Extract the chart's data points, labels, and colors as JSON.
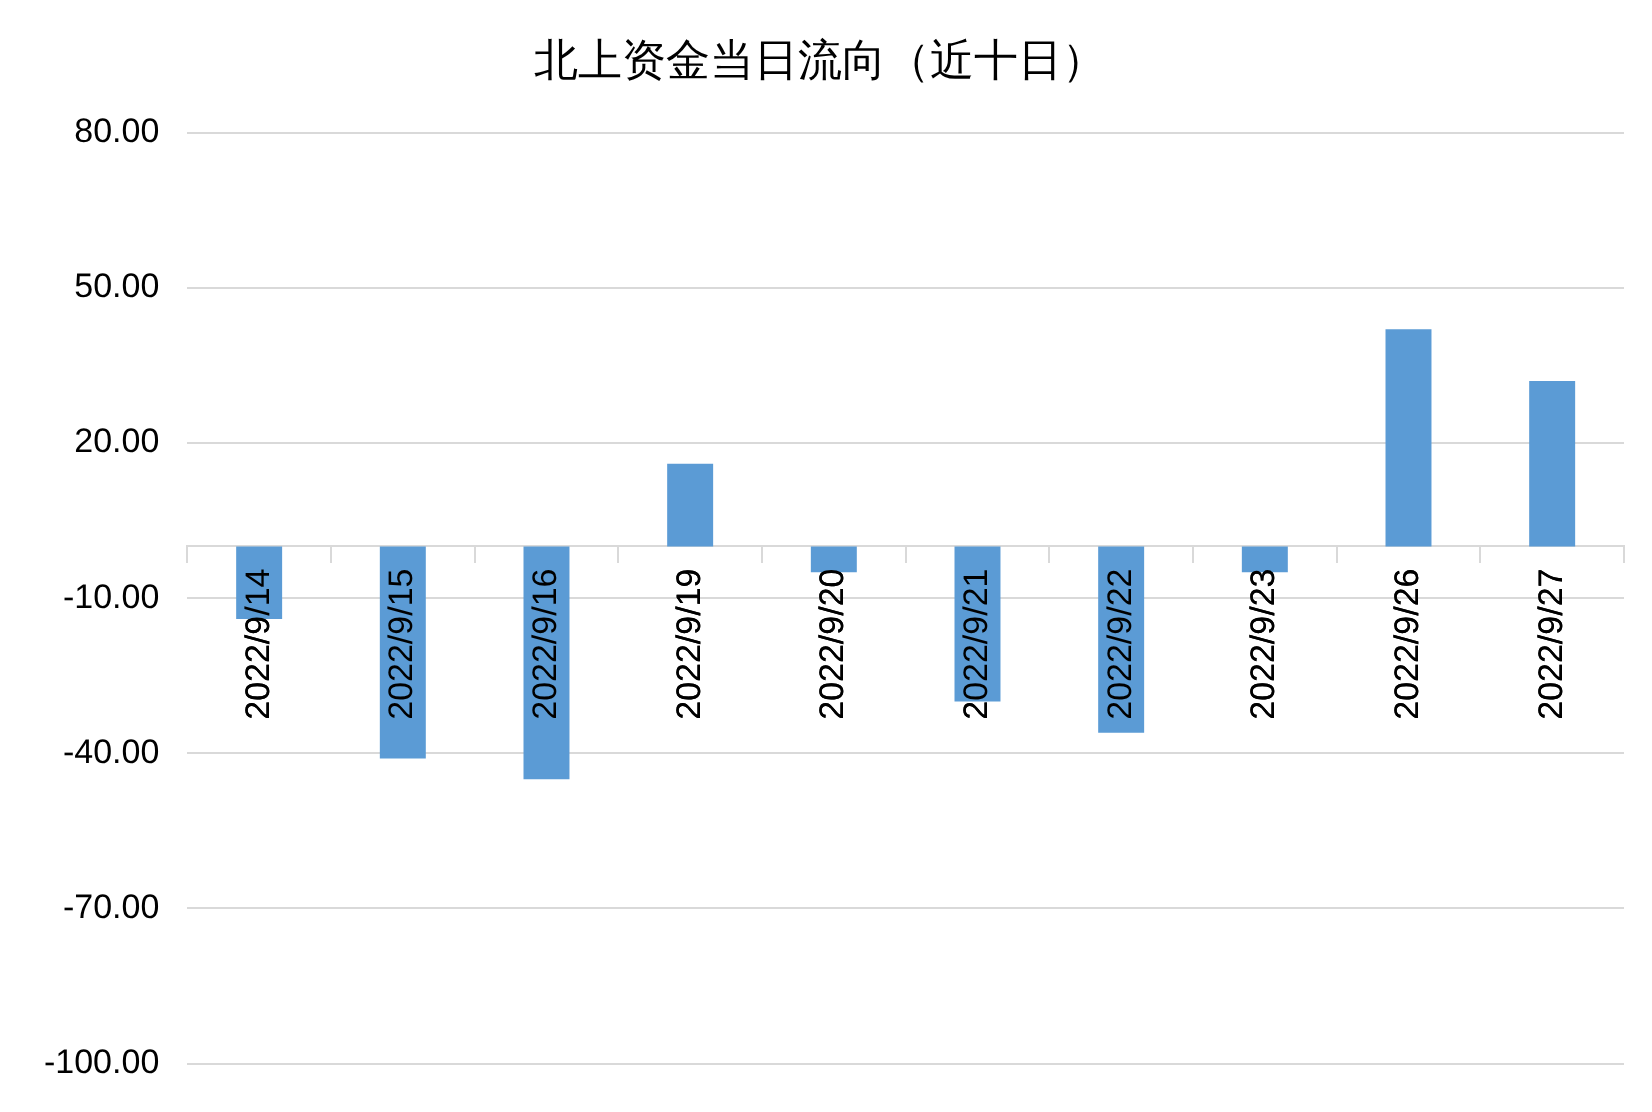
{
  "chart_data": {
    "type": "bar",
    "title": "北上资金当日流向（近十日）",
    "categories": [
      "2022/9/14",
      "2022/9/15",
      "2022/9/16",
      "2022/9/19",
      "2022/9/20",
      "2022/9/21",
      "2022/9/22",
      "2022/9/23",
      "2022/9/26",
      "2022/9/27"
    ],
    "values": [
      -14,
      -41,
      -45,
      16,
      -5,
      -30,
      -36,
      -5,
      42,
      32
    ],
    "color": "#5b9bd5",
    "ylim": [
      -100,
      80
    ],
    "yticks": [
      {
        "value": -100,
        "label": "-100.00"
      },
      {
        "value": -70,
        "label": "-70.00"
      },
      {
        "value": -40,
        "label": "-40.00"
      },
      {
        "value": -10,
        "label": "-10.00"
      },
      {
        "value": 20,
        "label": "20.00"
      },
      {
        "value": 50,
        "label": "50.00"
      },
      {
        "value": 80,
        "label": "80.00"
      }
    ],
    "grid": "y",
    "legend": false
  }
}
